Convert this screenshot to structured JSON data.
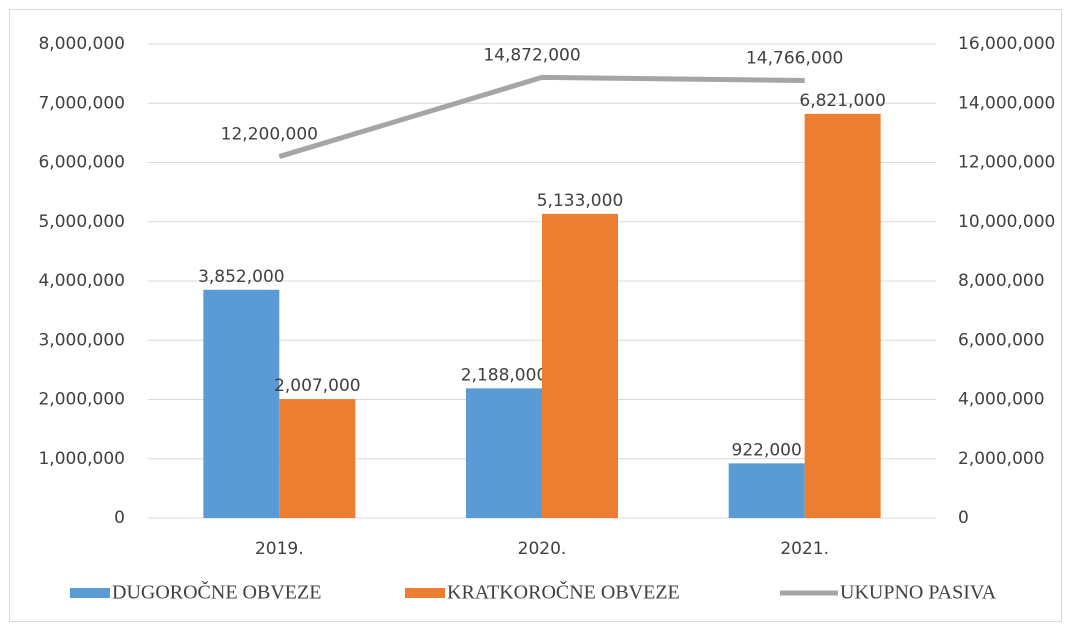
{
  "chart_data": {
    "type": "bar",
    "categories": [
      "2019.",
      "2020.",
      "2021."
    ],
    "series": [
      {
        "name": "DUGOROČNE OBVEZE",
        "color": "#5b9bd5",
        "values": [
          3852000,
          2188000,
          922000
        ],
        "value_labels": [
          "3,852,000",
          "2,188,000",
          "922,000"
        ]
      },
      {
        "name": "KRATKOROČNE OBVEZE",
        "color": "#ed7d31",
        "values": [
          2007000,
          5133000,
          6821000
        ],
        "value_labels": [
          "2,007,000",
          "5,133,000",
          "6,821,000"
        ]
      },
      {
        "name": "UKUPNO PASIVA",
        "type": "line",
        "axis": "y2",
        "color": "#a5a5a5",
        "values": [
          12200000,
          14872000,
          14766000
        ],
        "value_labels": [
          "12,200,000",
          "14,872,000",
          "14,766,000"
        ]
      }
    ],
    "ylim": [
      0,
      8000000
    ],
    "yticks": [
      0,
      {
        "value": 1000000,
        "label": "1,000,000"
      },
      {
        "value": 2000000,
        "label": "2,000,000"
      },
      {
        "value": 3000000,
        "label": "3,000,000"
      },
      {
        "value": 4000000,
        "label": "4,000,000"
      },
      {
        "value": 5000000,
        "label": "5,000,000"
      },
      {
        "value": 6000000,
        "label": "6,000,000"
      },
      {
        "value": 7000000,
        "label": "7,000,000"
      },
      {
        "value": 8000000,
        "label": "8,000,000"
      }
    ],
    "y2lim": [
      0,
      16000000
    ],
    "y2ticks": [
      0,
      {
        "value": 2000000,
        "label": "2,000,000"
      },
      {
        "value": 4000000,
        "label": "4,000,000"
      },
      {
        "value": 6000000,
        "label": "6,000,000"
      },
      {
        "value": 8000000,
        "label": "8,000,000"
      },
      {
        "value": 10000000,
        "label": "10,000,000"
      },
      {
        "value": 12000000,
        "label": "12,000,000"
      },
      {
        "value": 14000000,
        "label": "14,000,000"
      },
      {
        "value": 16000000,
        "label": "16,000,000"
      }
    ],
    "grid": true,
    "legend": "bottom"
  }
}
